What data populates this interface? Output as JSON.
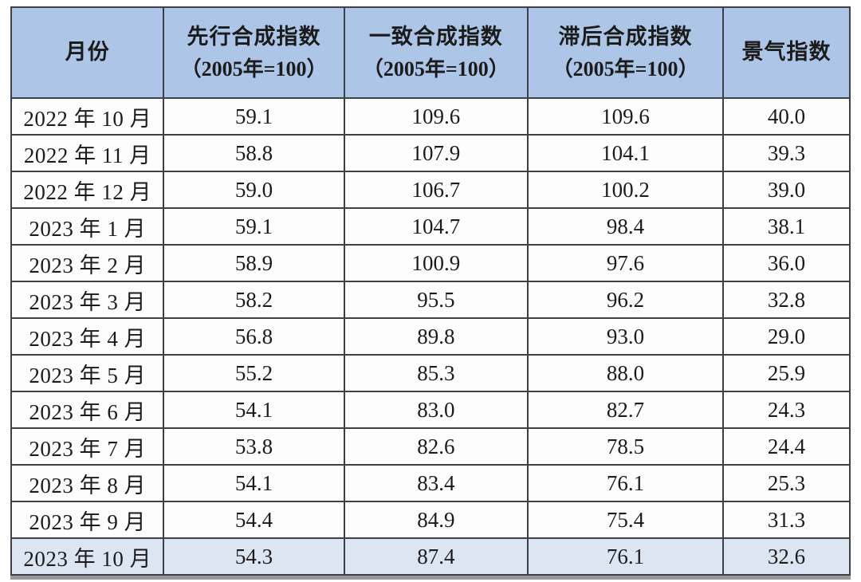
{
  "table": {
    "colors": {
      "header_bg": "#adc6e7",
      "highlight_bg": "#dce6f2",
      "border": "#3d4045",
      "text": "#1b1b1b",
      "bottom_edge": "#97999c"
    },
    "columns": [
      {
        "key": "month",
        "title": "月份",
        "subtitle": ""
      },
      {
        "key": "leading",
        "title": "先行合成指数",
        "subtitle": "（2005年=100）"
      },
      {
        "key": "coincident",
        "title": "一致合成指数",
        "subtitle": "（2005年=100）"
      },
      {
        "key": "lagging",
        "title": "滞后合成指数",
        "subtitle": "（2005年=100）"
      },
      {
        "key": "prosperity",
        "title": "景气指数",
        "subtitle": ""
      }
    ],
    "rows": [
      {
        "month": "2022 年 10 月",
        "leading": "59.1",
        "coincident": "109.6",
        "lagging": "109.6",
        "prosperity": "40.0",
        "highlight": false
      },
      {
        "month": "2022 年 11 月",
        "leading": "58.8",
        "coincident": "107.9",
        "lagging": "104.1",
        "prosperity": "39.3",
        "highlight": false
      },
      {
        "month": "2022 年 12 月",
        "leading": "59.0",
        "coincident": "106.7",
        "lagging": "100.2",
        "prosperity": "39.0",
        "highlight": false
      },
      {
        "month": "2023 年 1 月",
        "leading": "59.1",
        "coincident": "104.7",
        "lagging": "98.4",
        "prosperity": "38.1",
        "highlight": false
      },
      {
        "month": "2023 年 2 月",
        "leading": "58.9",
        "coincident": "100.9",
        "lagging": "97.6",
        "prosperity": "36.0",
        "highlight": false
      },
      {
        "month": "2023 年 3 月",
        "leading": "58.2",
        "coincident": "95.5",
        "lagging": "96.2",
        "prosperity": "32.8",
        "highlight": false
      },
      {
        "month": "2023 年 4 月",
        "leading": "56.8",
        "coincident": "89.8",
        "lagging": "93.0",
        "prosperity": "29.0",
        "highlight": false
      },
      {
        "month": "2023 年 5 月",
        "leading": "55.2",
        "coincident": "85.3",
        "lagging": "88.0",
        "prosperity": "25.9",
        "highlight": false
      },
      {
        "month": "2023 年 6 月",
        "leading": "54.1",
        "coincident": "83.0",
        "lagging": "82.7",
        "prosperity": "24.3",
        "highlight": false
      },
      {
        "month": "2023 年 7 月",
        "leading": "53.8",
        "coincident": "82.6",
        "lagging": "78.5",
        "prosperity": "24.4",
        "highlight": false
      },
      {
        "month": "2023 年 8 月",
        "leading": "54.1",
        "coincident": "83.4",
        "lagging": "76.1",
        "prosperity": "25.3",
        "highlight": false
      },
      {
        "month": "2023 年 9 月",
        "leading": "54.4",
        "coincident": "84.9",
        "lagging": "75.4",
        "prosperity": "31.3",
        "highlight": false
      },
      {
        "month": "2023 年 10 月",
        "leading": "54.3",
        "coincident": "87.4",
        "lagging": "76.1",
        "prosperity": "32.6",
        "highlight": true
      }
    ]
  },
  "chart_data": {
    "type": "table",
    "title": "",
    "columns": [
      "月份",
      "先行合成指数（2005年=100）",
      "一致合成指数（2005年=100）",
      "滞后合成指数（2005年=100）",
      "景气指数"
    ],
    "rows": [
      [
        "2022 年 10 月",
        59.1,
        109.6,
        109.6,
        40.0
      ],
      [
        "2022 年 11 月",
        58.8,
        107.9,
        104.1,
        39.3
      ],
      [
        "2022 年 12 月",
        59.0,
        106.7,
        100.2,
        39.0
      ],
      [
        "2023 年 1 月",
        59.1,
        104.7,
        98.4,
        38.1
      ],
      [
        "2023 年 2 月",
        58.9,
        100.9,
        97.6,
        36.0
      ],
      [
        "2023 年 3 月",
        58.2,
        95.5,
        96.2,
        32.8
      ],
      [
        "2023 年 4 月",
        56.8,
        89.8,
        93.0,
        29.0
      ],
      [
        "2023 年 5 月",
        55.2,
        85.3,
        88.0,
        25.9
      ],
      [
        "2023 年 6 月",
        54.1,
        83.0,
        82.7,
        24.3
      ],
      [
        "2023 年 7 月",
        53.8,
        82.6,
        78.5,
        24.4
      ],
      [
        "2023 年 8 月",
        54.1,
        83.4,
        76.1,
        25.3
      ],
      [
        "2023 年 9 月",
        54.4,
        84.9,
        75.4,
        31.3
      ],
      [
        "2023 年 10 月",
        54.3,
        87.4,
        76.1,
        32.6
      ]
    ],
    "notes": "Last row (2023 年 10 月) is highlighted with a light-blue background"
  }
}
